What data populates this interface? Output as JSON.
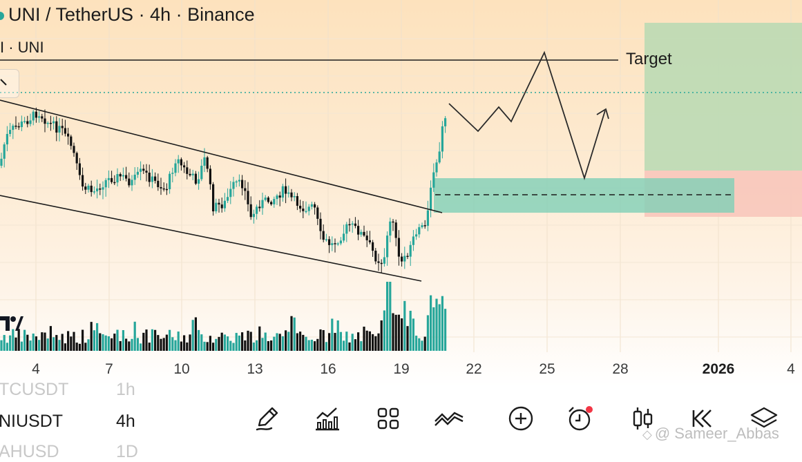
{
  "header": {
    "title": "UNI / TetherUS · 4h · Binance",
    "indicator": "I · UNI"
  },
  "annotations": {
    "target_label": "Target"
  },
  "x_axis": {
    "ticks": [
      {
        "label": "4",
        "bold": false
      },
      {
        "label": "7",
        "bold": false
      },
      {
        "label": "10",
        "bold": false
      },
      {
        "label": "13",
        "bold": false
      },
      {
        "label": "16",
        "bold": false
      },
      {
        "label": "19",
        "bold": false
      },
      {
        "label": "22",
        "bold": false
      },
      {
        "label": "25",
        "bold": false
      },
      {
        "label": "28",
        "bold": false
      },
      {
        "label": "2026",
        "bold": true
      },
      {
        "label": "4",
        "bold": false
      }
    ]
  },
  "colors": {
    "bull": "#26a69a",
    "bear": "#111111",
    "target_zone": "#b7d9b3",
    "stop_zone": "#f8c7bb",
    "entry_zone": "#7fcfb6"
  },
  "watchlist": [
    {
      "symbol": "TCUSDT",
      "timeframe": "1h",
      "faded": true
    },
    {
      "symbol": "NIUSDT",
      "timeframe": "4h",
      "faded": false
    },
    {
      "symbol": "AHUSD",
      "timeframe": "1D",
      "faded": true
    }
  ],
  "toolbar": {
    "items": [
      {
        "name": "drawing-tool-button",
        "icon": "pencil-icon"
      },
      {
        "name": "indicators-button",
        "icon": "chart-bars-icon"
      },
      {
        "name": "layouts-button",
        "icon": "grid-icon"
      },
      {
        "name": "compare-button",
        "icon": "trend-lines-icon"
      },
      {
        "name": "add-button",
        "icon": "plus-circle-icon"
      },
      {
        "name": "alert-button",
        "icon": "alarm-clock-icon"
      },
      {
        "name": "chart-type-button",
        "icon": "candles-icon"
      },
      {
        "name": "replay-button",
        "icon": "rewind-icon"
      },
      {
        "name": "layers-button",
        "icon": "layers-icon"
      }
    ]
  },
  "watermark": "@ Sameer_Abbas"
}
